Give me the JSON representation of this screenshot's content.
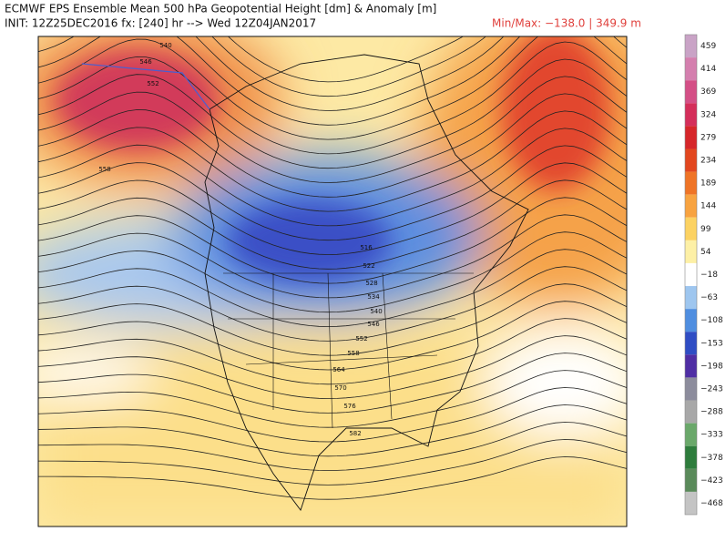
{
  "header": {
    "title": "ECMWF EPS Ensemble Mean 500 hPa Geopotential Height [dm] & Anomaly [m]",
    "init": "INIT: 12Z25DEC2016 fx: [240] hr --> Wed 12Z04JAN2017",
    "minmax": "Min/Max: −138.0 | 349.9 m"
  },
  "colorbar": {
    "labels": [
      "459",
      "414",
      "369",
      "324",
      "279",
      "234",
      "189",
      "144",
      "99",
      "54",
      "−18",
      "−63",
      "−108",
      "−153",
      "−198",
      "−243",
      "−288",
      "−333",
      "−378",
      "−423",
      "−468"
    ]
  },
  "contour_labels": [
    "540",
    "546",
    "552",
    "558",
    "516",
    "522",
    "528",
    "534",
    "540",
    "546",
    "552",
    "558",
    "564",
    "570",
    "576",
    "582"
  ]
}
